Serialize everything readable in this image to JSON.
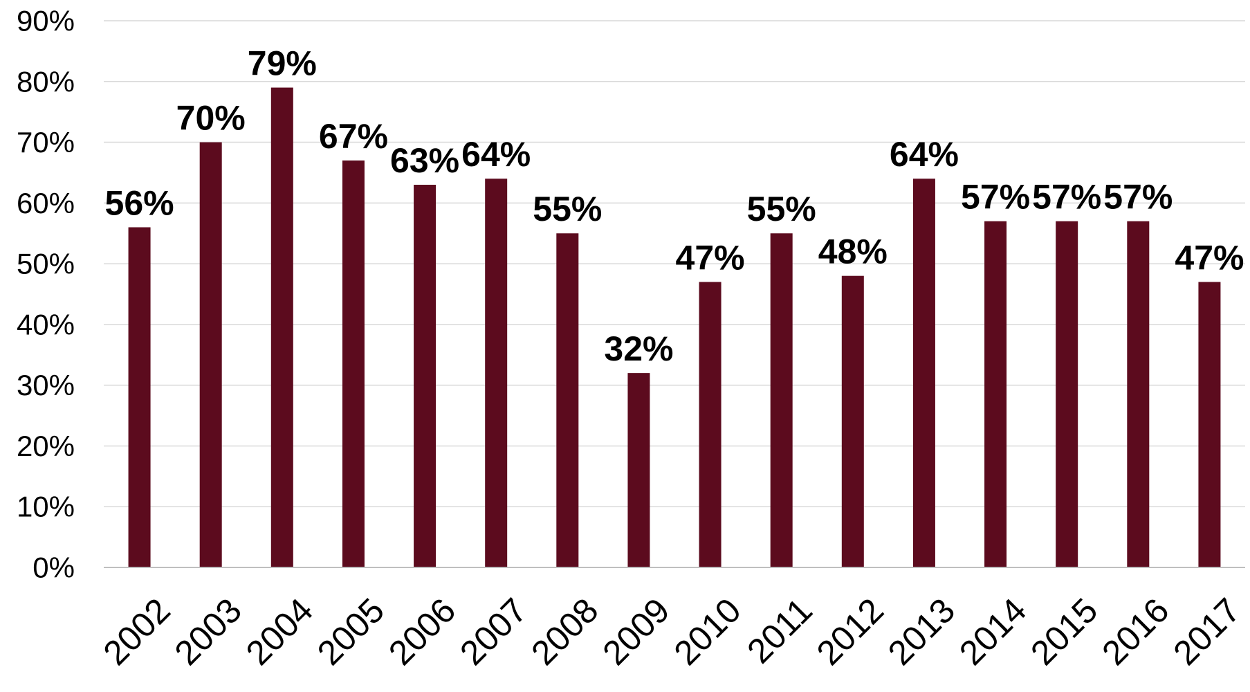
{
  "chart_data": {
    "type": "bar",
    "categories": [
      "2002",
      "2003",
      "2004",
      "2005",
      "2006",
      "2007",
      "2008",
      "2009",
      "2010",
      "2011",
      "2012",
      "2013",
      "2014",
      "2015",
      "2016",
      "2017"
    ],
    "values": [
      56,
      70,
      79,
      67,
      63,
      64,
      55,
      32,
      47,
      55,
      48,
      64,
      57,
      57,
      57,
      47
    ],
    "data_labels": [
      "56%",
      "70%",
      "79%",
      "67%",
      "63%",
      "64%",
      "55%",
      "32%",
      "47%",
      "55%",
      "48%",
      "64%",
      "57%",
      "57%",
      "57%",
      "47%"
    ],
    "y_ticks": [
      0,
      10,
      20,
      30,
      40,
      50,
      60,
      70,
      80,
      90
    ],
    "y_tick_labels": [
      "0%",
      "10%",
      "20%",
      "30%",
      "40%",
      "50%",
      "60%",
      "70%",
      "80%",
      "90%"
    ],
    "ylim": [
      0,
      90
    ],
    "unit": "%",
    "title": "",
    "xlabel": "",
    "ylabel": "",
    "grid": true,
    "legend": "none",
    "colors": {
      "bar": "#5c0b1e",
      "grid": "#d9d9d9",
      "axis": "#bfbfbf",
      "text": "#000000"
    }
  }
}
